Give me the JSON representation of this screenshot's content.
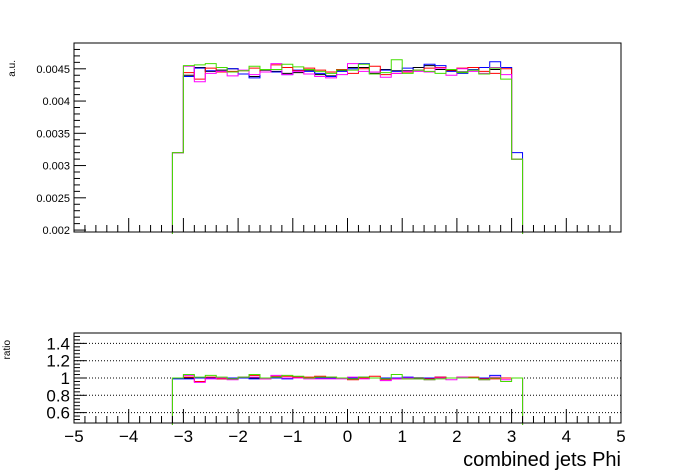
{
  "chart_data": [
    {
      "type": "line",
      "panel": "top",
      "ylabel": "a.u.",
      "xlim": [
        -5,
        5
      ],
      "ylim": [
        0.00197,
        0.0049
      ],
      "y_ticks": [
        "0.002",
        "0.0025",
        "0.003",
        "0.0035",
        "0.004",
        "0.0045"
      ],
      "bin_edges": [
        -3.2,
        -3.0,
        -2.8,
        -2.6,
        -2.4,
        -2.2,
        -2.0,
        -1.8,
        -1.6,
        -1.4,
        -1.2,
        -1.0,
        -0.8,
        -0.6,
        -0.4,
        -0.2,
        0.0,
        0.2,
        0.4,
        0.6,
        0.8,
        1.0,
        1.2,
        1.4,
        1.6,
        1.8,
        2.0,
        2.2,
        2.4,
        2.6,
        2.8,
        3.0,
        3.2
      ],
      "series": [
        {
          "color": "#000000",
          "values": [
            0.0032,
            0.0044,
            0.00452,
            0.00446,
            0.00448,
            0.0045,
            0.00442,
            0.00438,
            0.00448,
            0.00446,
            0.00443,
            0.00444,
            0.00447,
            0.00441,
            0.00439,
            0.00447,
            0.00452,
            0.00452,
            0.00443,
            0.00449,
            0.00447,
            0.00447,
            0.00452,
            0.00455,
            0.00449,
            0.00447,
            0.00445,
            0.00448,
            0.00452,
            0.00449,
            0.00452,
            0.0031
          ]
        },
        {
          "color": "#0000ff",
          "values": [
            0.0032,
            0.00438,
            0.00451,
            0.00447,
            0.00446,
            0.0045,
            0.00442,
            0.00436,
            0.00449,
            0.00445,
            0.00441,
            0.00448,
            0.00446,
            0.00443,
            0.00438,
            0.00446,
            0.0045,
            0.00458,
            0.00442,
            0.00448,
            0.00446,
            0.00451,
            0.00448,
            0.00457,
            0.00455,
            0.00446,
            0.00443,
            0.00449,
            0.00452,
            0.00461,
            0.00452,
            0.0032
          ]
        },
        {
          "color": "#ff0000",
          "values": [
            0.0032,
            0.00444,
            0.00434,
            0.00451,
            0.00445,
            0.00446,
            0.00447,
            0.00451,
            0.00445,
            0.00456,
            0.00452,
            0.00447,
            0.00451,
            0.00448,
            0.00445,
            0.00449,
            0.00443,
            0.0045,
            0.00454,
            0.00441,
            0.00443,
            0.00445,
            0.00448,
            0.00451,
            0.00452,
            0.00448,
            0.00451,
            0.00452,
            0.00446,
            0.00443,
            0.0045,
            0.0031
          ]
        },
        {
          "color": "#ff00ff",
          "values": [
            0.0032,
            0.00454,
            0.0043,
            0.00443,
            0.00446,
            0.00439,
            0.00448,
            0.00441,
            0.00445,
            0.00458,
            0.00441,
            0.00446,
            0.00442,
            0.00438,
            0.00436,
            0.00441,
            0.00458,
            0.00446,
            0.00445,
            0.00437,
            0.00443,
            0.00446,
            0.00446,
            0.00445,
            0.00451,
            0.0044,
            0.0045,
            0.00446,
            0.00443,
            0.00452,
            0.00441,
            0.0031
          ]
        },
        {
          "color": "#44dd00",
          "values": [
            0.0032,
            0.00455,
            0.00456,
            0.00458,
            0.00452,
            0.00445,
            0.00447,
            0.00454,
            0.00449,
            0.00449,
            0.00457,
            0.00453,
            0.00449,
            0.00446,
            0.00443,
            0.00448,
            0.00448,
            0.00457,
            0.00442,
            0.00444,
            0.00464,
            0.00443,
            0.00448,
            0.00446,
            0.00443,
            0.00449,
            0.00444,
            0.00448,
            0.00442,
            0.00451,
            0.00434,
            0.0031
          ]
        }
      ]
    },
    {
      "type": "line",
      "panel": "bottom",
      "ylabel": "ratio",
      "xlabel": "combined jets Phi",
      "xlim": [
        -5,
        5
      ],
      "ylim": [
        0.48,
        1.52
      ],
      "y_ticks": [
        "0.6",
        "0.8",
        "1",
        "1.2",
        "1.4"
      ],
      "x_ticks": [
        "−5",
        "−4",
        "−3",
        "−2",
        "−1",
        "0",
        "1",
        "2",
        "3",
        "4",
        "5"
      ],
      "grid": true,
      "bin_edges": [
        -3.2,
        -3.0,
        -2.8,
        -2.6,
        -2.4,
        -2.2,
        -2.0,
        -1.8,
        -1.6,
        -1.4,
        -1.2,
        -1.0,
        -0.8,
        -0.6,
        -0.4,
        -0.2,
        0.0,
        0.2,
        0.4,
        0.6,
        0.8,
        1.0,
        1.2,
        1.4,
        1.6,
        1.8,
        2.0,
        2.2,
        2.4,
        2.6,
        2.8,
        3.0,
        3.2
      ],
      "series": [
        {
          "color": "#000000",
          "values": [
            1.0,
            1.0,
            1.0,
            1.0,
            1.0,
            1.0,
            1.0,
            1.0,
            1.0,
            1.0,
            1.0,
            1.0,
            1.0,
            1.0,
            1.0,
            1.0,
            1.0,
            1.0,
            1.0,
            1.0,
            1.0,
            1.0,
            1.0,
            1.0,
            1.0,
            1.0,
            1.0,
            1.0,
            1.0,
            1.0,
            1.0,
            1.0
          ]
        },
        {
          "color": "#0000ff",
          "values": [
            0.99,
            0.99,
            1.0,
            1.0,
            0.99,
            1.0,
            1.0,
            0.99,
            1.0,
            1.0,
            0.99,
            1.01,
            1.0,
            1.0,
            1.0,
            1.0,
            1.0,
            1.01,
            1.0,
            1.0,
            1.0,
            1.01,
            0.99,
            1.0,
            1.01,
            1.0,
            1.0,
            1.0,
            1.0,
            1.03,
            1.0,
            1.0
          ]
        },
        {
          "color": "#ff0000",
          "values": [
            1.0,
            1.01,
            0.96,
            1.01,
            0.99,
            0.99,
            1.01,
            1.03,
            0.99,
            1.02,
            1.02,
            1.01,
            1.01,
            1.02,
            1.01,
            1.0,
            0.98,
            1.0,
            1.02,
            0.98,
            0.99,
            0.99,
            0.99,
            0.99,
            1.01,
            1.0,
            1.01,
            1.01,
            0.99,
            0.99,
            1.0,
            1.0
          ]
        },
        {
          "color": "#ff00ff",
          "values": [
            1.0,
            1.03,
            0.95,
            0.99,
            1.0,
            0.98,
            1.01,
            1.01,
            0.99,
            1.03,
            1.0,
            1.0,
            0.99,
            0.99,
            0.99,
            0.99,
            1.01,
            0.99,
            1.0,
            0.97,
            0.99,
            1.0,
            0.99,
            0.98,
            1.0,
            0.98,
            1.01,
            1.0,
            0.98,
            1.01,
            0.98,
            1.0
          ]
        },
        {
          "color": "#44dd00",
          "values": [
            1.0,
            1.04,
            1.01,
            1.03,
            1.01,
            0.99,
            1.01,
            1.04,
            1.0,
            1.01,
            1.03,
            1.02,
            1.0,
            1.01,
            1.01,
            1.0,
            0.99,
            1.01,
            1.0,
            0.99,
            1.04,
            0.99,
            0.99,
            0.98,
            0.99,
            1.0,
            1.0,
            1.0,
            0.98,
            1.0,
            0.96,
            1.0
          ]
        }
      ]
    }
  ]
}
